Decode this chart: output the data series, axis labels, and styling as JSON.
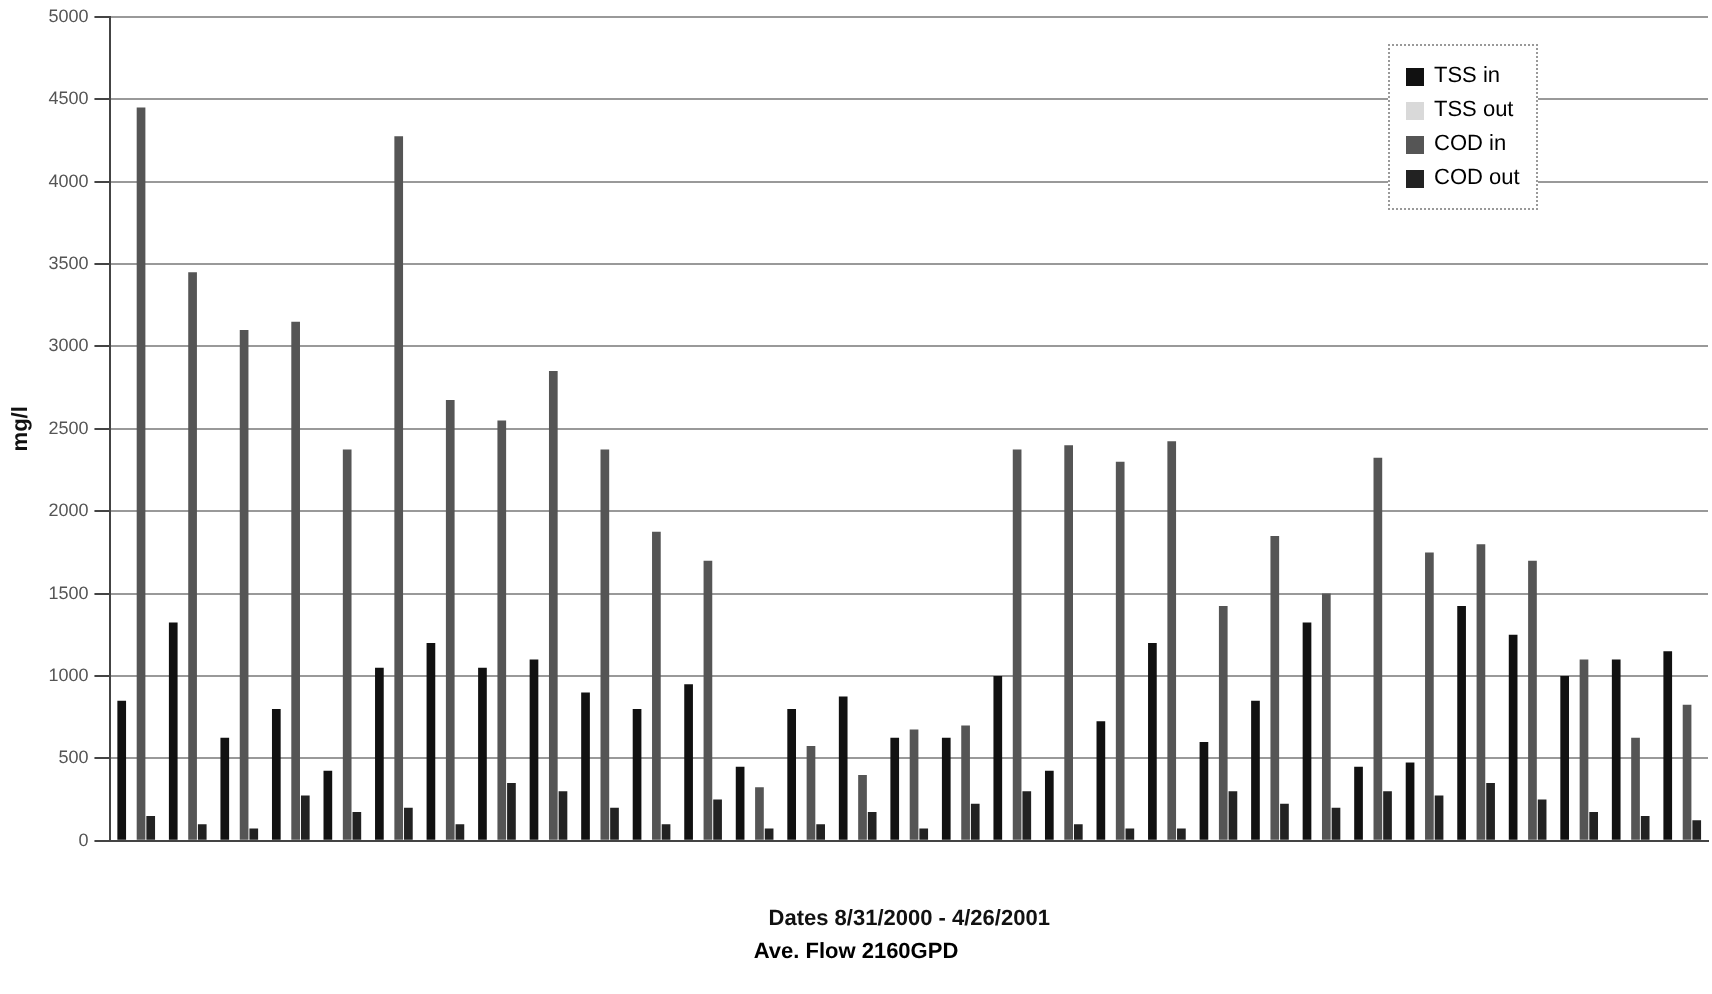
{
  "chart_data": {
    "type": "bar",
    "ylabel": "mg/l",
    "xlabel": "Dates 8/31/2000 - 4/26/2001",
    "annotations": [
      "Ave. Flow 2160GPD"
    ],
    "categories": [
      null,
      null,
      null,
      null,
      null,
      null,
      null,
      null,
      null,
      null,
      null,
      null,
      null,
      null,
      null,
      null,
      null,
      null,
      null,
      null,
      null,
      null,
      null,
      null,
      null,
      null,
      null,
      null,
      null,
      null,
      null
    ],
    "series": [
      {
        "name": "TSS in",
        "color": "#111111",
        "values": [
          850,
          1325,
          625,
          800,
          425,
          1050,
          1200,
          1050,
          1100,
          900,
          800,
          950,
          450,
          800,
          875,
          625,
          625,
          1000,
          425,
          725,
          1200,
          600,
          850,
          1325,
          450,
          475,
          1425,
          1250,
          1000,
          1100,
          1150
        ]
      },
      {
        "name": "TSS out",
        "color": "#d9d9d9",
        "values": [
          null,
          null,
          null,
          null,
          null,
          null,
          null,
          null,
          null,
          null,
          null,
          null,
          null,
          null,
          null,
          null,
          null,
          null,
          null,
          null,
          null,
          null,
          null,
          null,
          null,
          null,
          null,
          null,
          null,
          null,
          null
        ]
      },
      {
        "name": "COD in",
        "color": "#555555",
        "values": [
          4450,
          3450,
          3100,
          3150,
          2375,
          4275,
          2675,
          2550,
          2850,
          2375,
          1875,
          1700,
          325,
          575,
          400,
          675,
          700,
          2375,
          2400,
          2300,
          2425,
          1425,
          1850,
          1500,
          2325,
          1750,
          1800,
          1700,
          1100,
          625,
          825
        ]
      },
      {
        "name": "COD out",
        "color": "#222222",
        "values": [
          150,
          100,
          75,
          275,
          175,
          200,
          100,
          350,
          300,
          200,
          100,
          250,
          75,
          100,
          175,
          75,
          225,
          300,
          100,
          75,
          75,
          300,
          225,
          200,
          300,
          275,
          350,
          250,
          175,
          150,
          125
        ]
      }
    ],
    "ylim": [
      0,
      5000
    ],
    "yticks": [
      0,
      500,
      1000,
      1500,
      2000,
      2500,
      3000,
      3500,
      4000,
      4500,
      5000
    ],
    "grid": "y",
    "legend": "top right"
  }
}
